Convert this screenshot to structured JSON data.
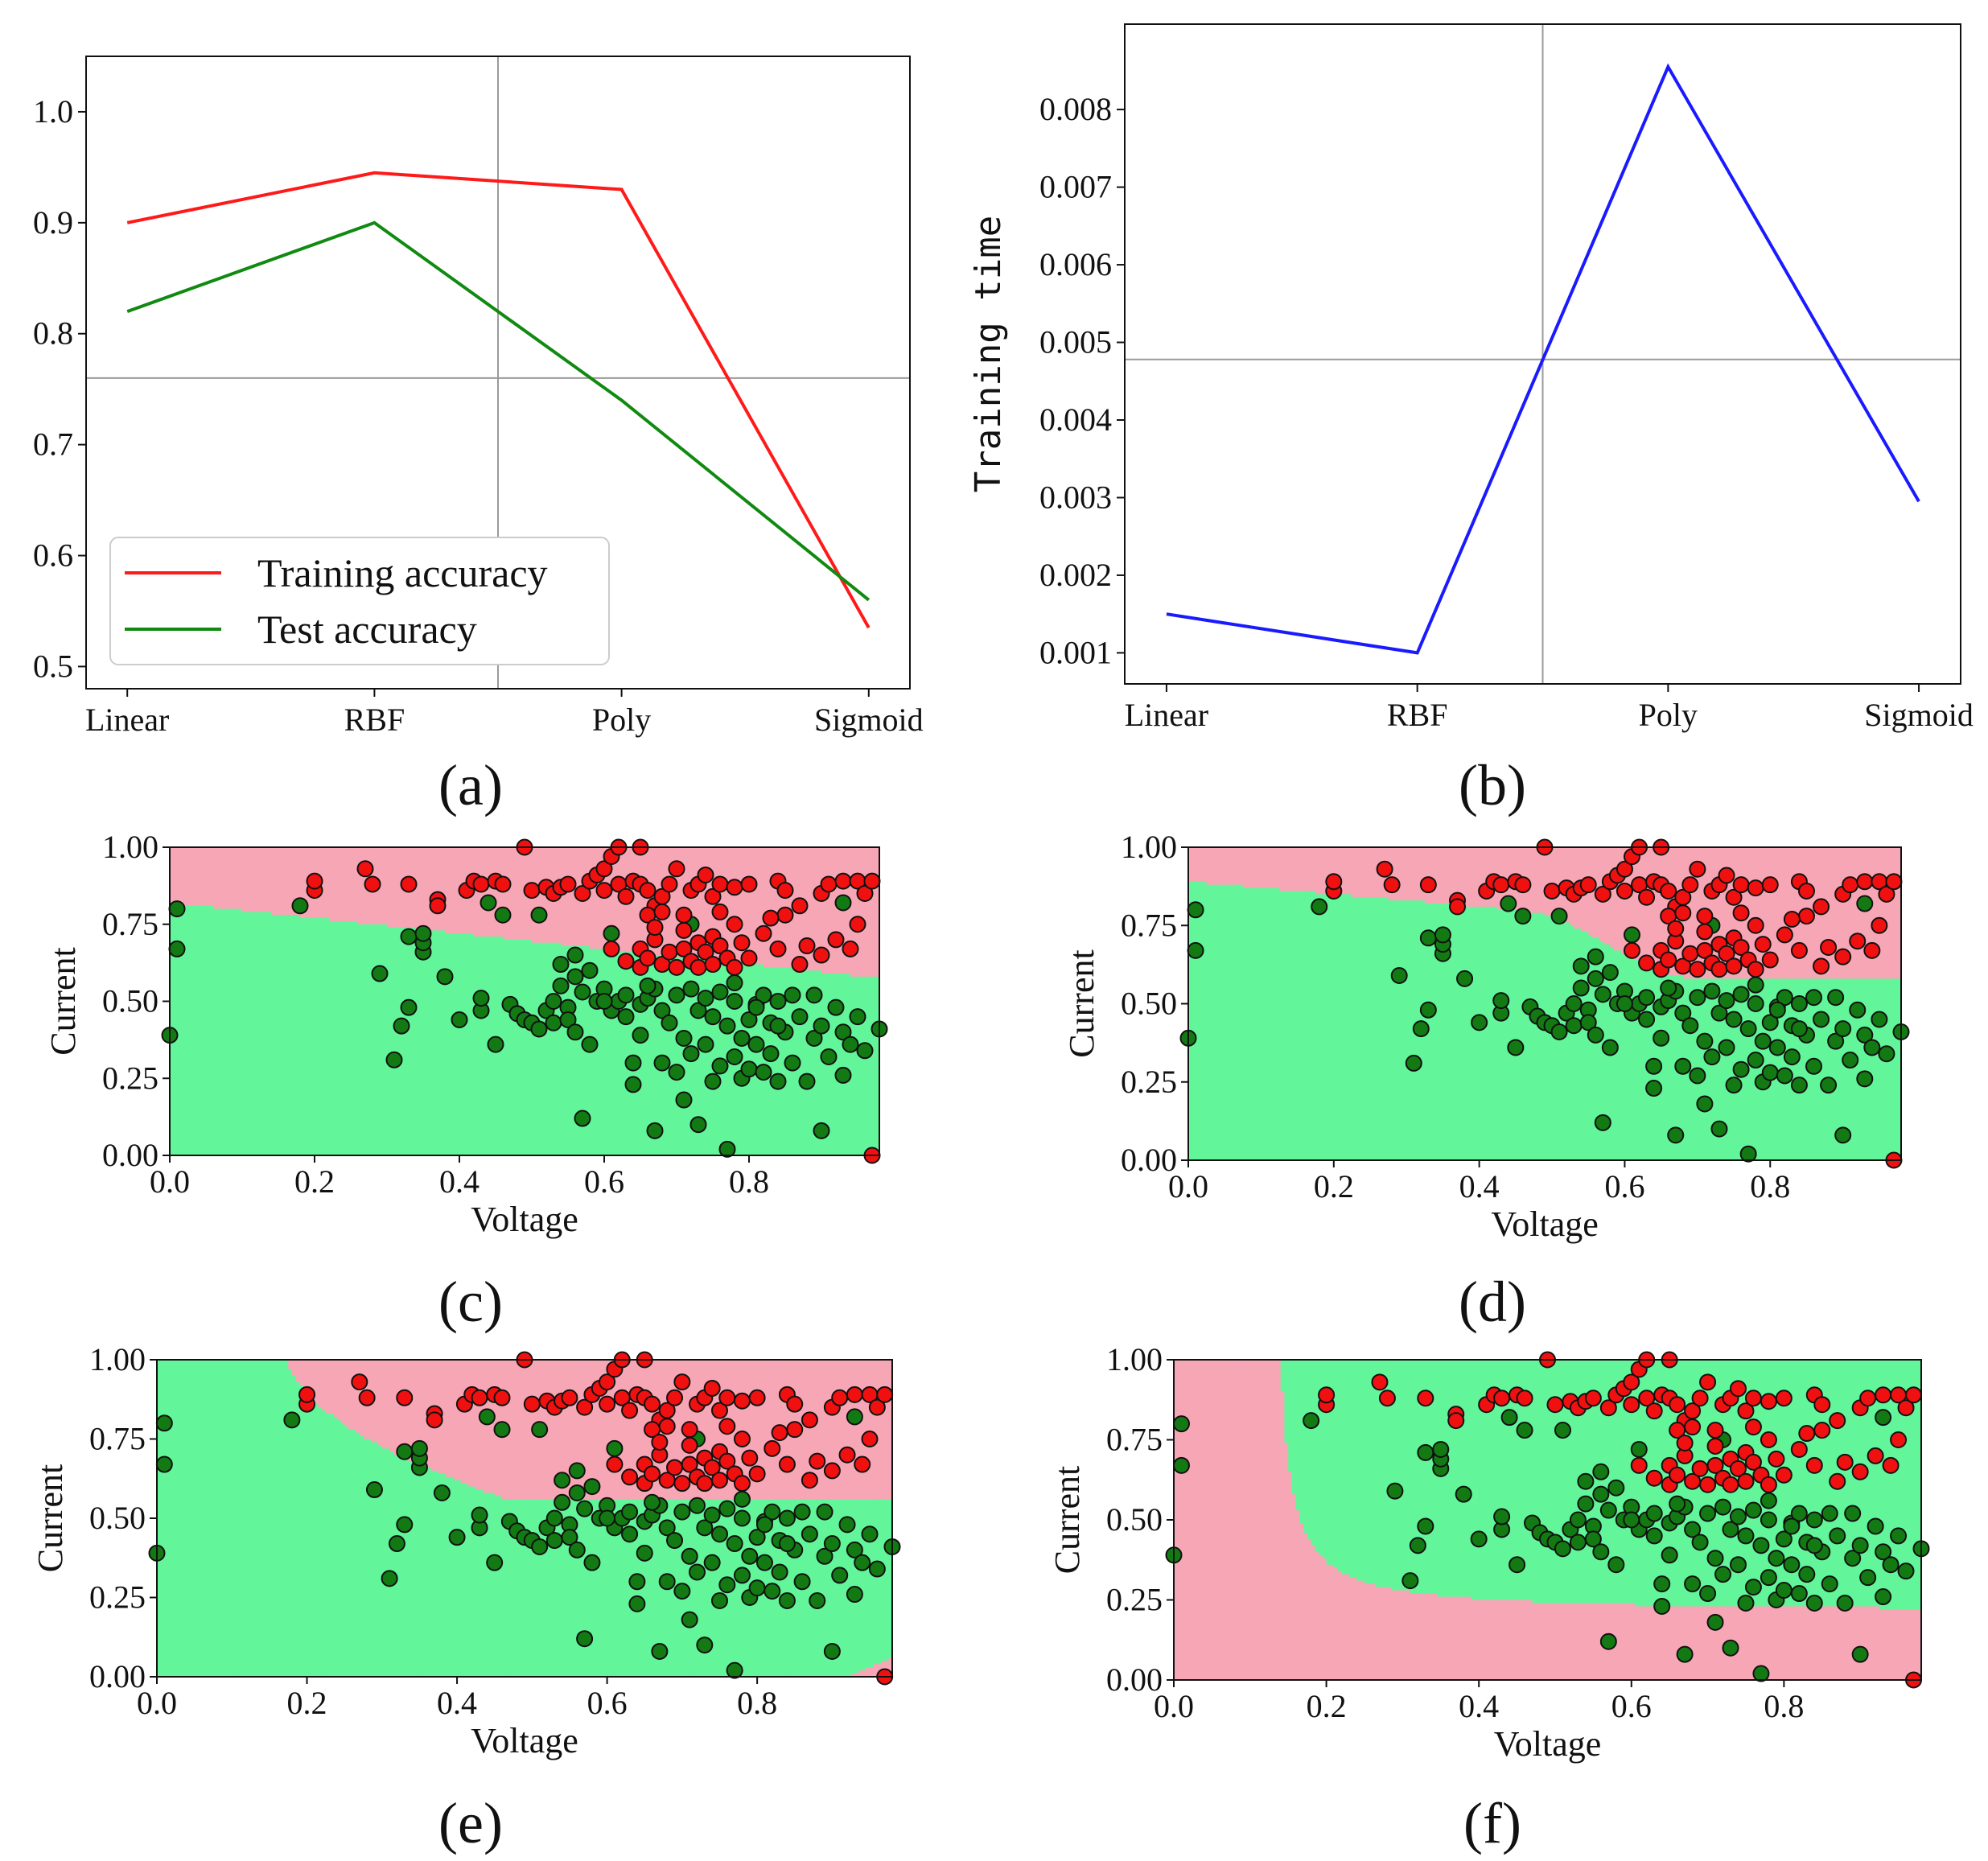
{
  "colors": {
    "training": "#ff1a1a",
    "test": "#108a10",
    "time": "#1a1aff",
    "region_red": "#f7a6b6",
    "region_green": "#62f59a",
    "point_red": "#f01010",
    "point_green": "#137a13"
  },
  "panel_labels": {
    "a": "(a)",
    "b": "(b)",
    "c": "(c)",
    "d": "(d)",
    "e": "(e)",
    "f": "(f)"
  },
  "chart_data": [
    {
      "id": "a",
      "type": "line",
      "categories": [
        "Linear",
        "RBF",
        "Poly",
        "Sigmoid"
      ],
      "series": [
        {
          "name": "Training accuracy",
          "values": [
            0.9,
            0.945,
            0.93,
            0.535
          ]
        },
        {
          "name": "Test accuracy",
          "values": [
            0.82,
            0.9,
            0.74,
            0.56
          ]
        }
      ],
      "ylim": [
        0.48,
        1.05
      ],
      "yticks": [
        "0.5",
        "0.6",
        "0.7",
        "0.8",
        "0.9",
        "1.0"
      ],
      "crosshair": {
        "x": 1.5,
        "y": 0.76
      },
      "legend": "lower-left"
    },
    {
      "id": "b",
      "type": "line",
      "categories": [
        "Linear",
        "RBF",
        "Poly",
        "Sigmoid"
      ],
      "series": [
        {
          "values": [
            0.0015,
            0.001,
            0.00855,
            0.00295
          ]
        }
      ],
      "ylabel": "Training time",
      "ylim": [
        0.0006,
        0.0091
      ],
      "yticks": [
        "0.001",
        "0.002",
        "0.003",
        "0.004",
        "0.005",
        "0.006",
        "0.007",
        "0.008"
      ],
      "crosshair": {
        "x": 1.5,
        "y": 0.00478
      }
    },
    {
      "id": "c",
      "type": "scatter",
      "kernel": "Linear",
      "xlabel": "Voltage",
      "ylabel": "Current",
      "xlim": [
        0,
        0.98
      ],
      "ylim": [
        0,
        1
      ],
      "xticks": [
        "0.0",
        "0.2",
        "0.4",
        "0.6",
        "0.8"
      ],
      "yticks": [
        "0.00",
        "0.25",
        "0.50",
        "0.75",
        "1.00"
      ]
    },
    {
      "id": "d",
      "type": "scatter",
      "kernel": "RBF",
      "xlabel": "Voltage",
      "ylabel": "Current",
      "xlim": [
        0,
        0.98
      ],
      "ylim": [
        0,
        1
      ],
      "xticks": [
        "0.0",
        "0.2",
        "0.4",
        "0.6",
        "0.8"
      ],
      "yticks": [
        "0.00",
        "0.25",
        "0.50",
        "0.75",
        "1.00"
      ]
    },
    {
      "id": "e",
      "type": "scatter",
      "kernel": "Poly",
      "xlabel": "Voltage",
      "ylabel": "Current",
      "xlim": [
        0,
        0.98
      ],
      "ylim": [
        0,
        1
      ],
      "xticks": [
        "0.0",
        "0.2",
        "0.4",
        "0.6",
        "0.8"
      ],
      "yticks": [
        "0.00",
        "0.25",
        "0.50",
        "0.75",
        "1.00"
      ]
    },
    {
      "id": "f",
      "type": "scatter",
      "kernel": "Sigmoid",
      "xlabel": "Voltage",
      "ylabel": "Current",
      "xlim": [
        0,
        0.98
      ],
      "ylim": [
        0,
        1
      ],
      "xticks": [
        "0.0",
        "0.2",
        "0.4",
        "0.6",
        "0.8"
      ],
      "yticks": [
        "0.00",
        "0.25",
        "0.50",
        "0.75",
        "1.00"
      ]
    }
  ],
  "scatter_points": {
    "red": [
      [
        0.2,
        0.86
      ],
      [
        0.2,
        0.89
      ],
      [
        0.27,
        0.93
      ],
      [
        0.28,
        0.88
      ],
      [
        0.33,
        0.88
      ],
      [
        0.37,
        0.83
      ],
      [
        0.37,
        0.81
      ],
      [
        0.41,
        0.86
      ],
      [
        0.42,
        0.89
      ],
      [
        0.43,
        0.88
      ],
      [
        0.45,
        0.89
      ],
      [
        0.46,
        0.88
      ],
      [
        0.49,
        1.0
      ],
      [
        0.5,
        0.86
      ],
      [
        0.52,
        0.87
      ],
      [
        0.53,
        0.85
      ],
      [
        0.54,
        0.87
      ],
      [
        0.55,
        0.88
      ],
      [
        0.57,
        0.85
      ],
      [
        0.58,
        0.89
      ],
      [
        0.59,
        0.91
      ],
      [
        0.6,
        0.93
      ],
      [
        0.6,
        0.86
      ],
      [
        0.61,
        0.97
      ],
      [
        0.62,
        0.88
      ],
      [
        0.62,
        1.0
      ],
      [
        0.63,
        0.84
      ],
      [
        0.64,
        0.89
      ],
      [
        0.65,
        0.88
      ],
      [
        0.65,
        1.0
      ],
      [
        0.66,
        0.86
      ],
      [
        0.67,
        0.81
      ],
      [
        0.68,
        0.84
      ],
      [
        0.69,
        0.88
      ],
      [
        0.7,
        0.93
      ],
      [
        0.72,
        0.86
      ],
      [
        0.73,
        0.88
      ],
      [
        0.74,
        0.91
      ],
      [
        0.75,
        0.84
      ],
      [
        0.76,
        0.88
      ],
      [
        0.78,
        0.87
      ],
      [
        0.8,
        0.88
      ],
      [
        0.84,
        0.89
      ],
      [
        0.85,
        0.86
      ],
      [
        0.87,
        0.81
      ],
      [
        0.9,
        0.85
      ],
      [
        0.91,
        0.88
      ],
      [
        0.93,
        0.89
      ],
      [
        0.95,
        0.89
      ],
      [
        0.96,
        0.85
      ],
      [
        0.97,
        0.89
      ],
      [
        0.61,
        0.67
      ],
      [
        0.63,
        0.63
      ],
      [
        0.65,
        0.61
      ],
      [
        0.65,
        0.67
      ],
      [
        0.66,
        0.64
      ],
      [
        0.67,
        0.7
      ],
      [
        0.68,
        0.62
      ],
      [
        0.69,
        0.66
      ],
      [
        0.7,
        0.61
      ],
      [
        0.71,
        0.67
      ],
      [
        0.71,
        0.73
      ],
      [
        0.72,
        0.63
      ],
      [
        0.73,
        0.69
      ],
      [
        0.73,
        0.61
      ],
      [
        0.74,
        0.66
      ],
      [
        0.75,
        0.71
      ],
      [
        0.75,
        0.62
      ],
      [
        0.76,
        0.68
      ],
      [
        0.77,
        0.64
      ],
      [
        0.78,
        0.75
      ],
      [
        0.78,
        0.61
      ],
      [
        0.79,
        0.69
      ],
      [
        0.8,
        0.64
      ],
      [
        0.82,
        0.72
      ],
      [
        0.84,
        0.67
      ],
      [
        0.85,
        0.78
      ],
      [
        0.87,
        0.62
      ],
      [
        0.88,
        0.68
      ],
      [
        0.9,
        0.65
      ],
      [
        0.92,
        0.7
      ],
      [
        0.94,
        0.67
      ],
      [
        0.95,
        0.75
      ],
      [
        0.66,
        0.78
      ],
      [
        0.67,
        0.74
      ],
      [
        0.68,
        0.79
      ],
      [
        0.83,
        0.77
      ],
      [
        0.71,
        0.78
      ],
      [
        0.76,
        0.79
      ],
      [
        0.97,
        0.0
      ]
    ],
    "green": [
      [
        0.0,
        0.39
      ],
      [
        0.01,
        0.67
      ],
      [
        0.01,
        0.8
      ],
      [
        0.18,
        0.81
      ],
      [
        0.29,
        0.59
      ],
      [
        0.31,
        0.31
      ],
      [
        0.32,
        0.42
      ],
      [
        0.33,
        0.48
      ],
      [
        0.33,
        0.71
      ],
      [
        0.35,
        0.66
      ],
      [
        0.35,
        0.69
      ],
      [
        0.38,
        0.58
      ],
      [
        0.4,
        0.44
      ],
      [
        0.43,
        0.47
      ],
      [
        0.43,
        0.51
      ],
      [
        0.44,
        0.82
      ],
      [
        0.45,
        0.36
      ],
      [
        0.46,
        0.78
      ],
      [
        0.47,
        0.49
      ],
      [
        0.48,
        0.46
      ],
      [
        0.49,
        0.44
      ],
      [
        0.5,
        0.43
      ],
      [
        0.51,
        0.41
      ],
      [
        0.52,
        0.47
      ],
      [
        0.53,
        0.5
      ],
      [
        0.53,
        0.43
      ],
      [
        0.54,
        0.55
      ],
      [
        0.54,
        0.62
      ],
      [
        0.55,
        0.48
      ],
      [
        0.55,
        0.44
      ],
      [
        0.56,
        0.4
      ],
      [
        0.56,
        0.65
      ],
      [
        0.57,
        0.53
      ],
      [
        0.57,
        0.12
      ],
      [
        0.58,
        0.36
      ],
      [
        0.59,
        0.5
      ],
      [
        0.6,
        0.54
      ],
      [
        0.61,
        0.47
      ],
      [
        0.62,
        0.5
      ],
      [
        0.63,
        0.52
      ],
      [
        0.63,
        0.45
      ],
      [
        0.64,
        0.23
      ],
      [
        0.64,
        0.3
      ],
      [
        0.65,
        0.39
      ],
      [
        0.65,
        0.49
      ],
      [
        0.66,
        0.51
      ],
      [
        0.67,
        0.54
      ],
      [
        0.67,
        0.08
      ],
      [
        0.68,
        0.47
      ],
      [
        0.68,
        0.3
      ],
      [
        0.69,
        0.43
      ],
      [
        0.7,
        0.52
      ],
      [
        0.7,
        0.27
      ],
      [
        0.71,
        0.38
      ],
      [
        0.72,
        0.54
      ],
      [
        0.72,
        0.33
      ],
      [
        0.73,
        0.47
      ],
      [
        0.73,
        0.1
      ],
      [
        0.74,
        0.51
      ],
      [
        0.74,
        0.36
      ],
      [
        0.75,
        0.24
      ],
      [
        0.75,
        0.45
      ],
      [
        0.76,
        0.53
      ],
      [
        0.76,
        0.29
      ],
      [
        0.77,
        0.02
      ],
      [
        0.77,
        0.42
      ],
      [
        0.78,
        0.5
      ],
      [
        0.78,
        0.32
      ],
      [
        0.79,
        0.38
      ],
      [
        0.79,
        0.25
      ],
      [
        0.8,
        0.44
      ],
      [
        0.8,
        0.28
      ],
      [
        0.81,
        0.49
      ],
      [
        0.81,
        0.36
      ],
      [
        0.82,
        0.52
      ],
      [
        0.82,
        0.27
      ],
      [
        0.83,
        0.43
      ],
      [
        0.83,
        0.33
      ],
      [
        0.84,
        0.24
      ],
      [
        0.84,
        0.5
      ],
      [
        0.85,
        0.4
      ],
      [
        0.86,
        0.3
      ],
      [
        0.86,
        0.52
      ],
      [
        0.87,
        0.45
      ],
      [
        0.88,
        0.24
      ],
      [
        0.89,
        0.38
      ],
      [
        0.89,
        0.52
      ],
      [
        0.9,
        0.42
      ],
      [
        0.9,
        0.08
      ],
      [
        0.91,
        0.32
      ],
      [
        0.92,
        0.48
      ],
      [
        0.93,
        0.4
      ],
      [
        0.93,
        0.26
      ],
      [
        0.94,
        0.36
      ],
      [
        0.95,
        0.45
      ],
      [
        0.96,
        0.34
      ],
      [
        0.98,
        0.41
      ],
      [
        0.93,
        0.82
      ],
      [
        0.72,
        0.75
      ],
      [
        0.78,
        0.56
      ],
      [
        0.66,
        0.55
      ],
      [
        0.6,
        0.5
      ],
      [
        0.58,
        0.6
      ],
      [
        0.51,
        0.78
      ],
      [
        0.35,
        0.72
      ],
      [
        0.71,
        0.18
      ],
      [
        0.81,
        0.48
      ],
      [
        0.84,
        0.42
      ],
      [
        0.61,
        0.72
      ],
      [
        0.56,
        0.58
      ]
    ]
  }
}
